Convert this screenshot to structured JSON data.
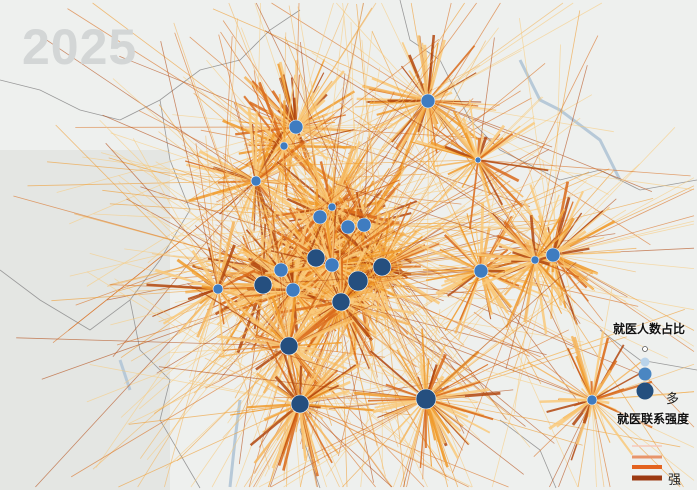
{
  "year": "2025",
  "legend": {
    "size_title": "就医人数占比",
    "size_high_label": "多",
    "strength_title": "就医联系强度",
    "strength_high_label": "强",
    "node_colors": [
      "#ffffff",
      "#b9d3ea",
      "#4a86c2",
      "#244f7e"
    ],
    "line_colors": [
      "#f7c7b8",
      "#e8946a",
      "#e3631f",
      "#9c3a12"
    ]
  },
  "colors": {
    "background": "#eef0ee",
    "boundary": "#9a9a9a",
    "river": "#b7c9d8",
    "flow_light": "#f9c97a",
    "flow_mid": "#f09a2a",
    "flow_strong": "#b2460e",
    "node": "#3f7cc0",
    "node_dark": "#254f7f"
  }
}
